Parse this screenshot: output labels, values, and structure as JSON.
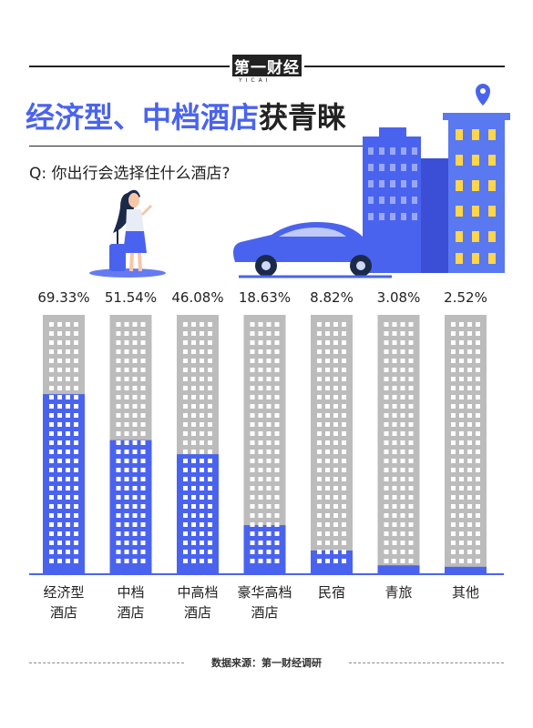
{
  "header": {
    "logo_text": "第一财经",
    "logo_subtext": "YICAI"
  },
  "title": {
    "part1": "经济型、中档酒店",
    "part2": "获青睐"
  },
  "question": "Q: 你出行会选择住什么酒店?",
  "source_label": "数据来源：第一财经调研",
  "colors": {
    "accent": "#4a63ee",
    "bar_bg": "#bcbcbc",
    "window": "#ffffff",
    "text": "#222222"
  },
  "chart_data": {
    "type": "bar",
    "title": "",
    "xlabel": "",
    "ylabel": "",
    "ylim": [
      0,
      100
    ],
    "grid": false,
    "legend": "none",
    "unit": "%",
    "categories": [
      [
        "经济型",
        "酒店"
      ],
      [
        "中档",
        "酒店"
      ],
      [
        "中高档",
        "酒店"
      ],
      [
        "豪华高档",
        "酒店"
      ],
      [
        "民宿"
      ],
      [
        "青旅"
      ],
      [
        "其他"
      ]
    ],
    "values": [
      69.33,
      51.54,
      46.08,
      18.63,
      8.82,
      3.08,
      2.52
    ],
    "labels": [
      "69.33%",
      "51.54%",
      "46.08%",
      "18.63%",
      "8.82%",
      "3.08%",
      "2.52%"
    ]
  }
}
